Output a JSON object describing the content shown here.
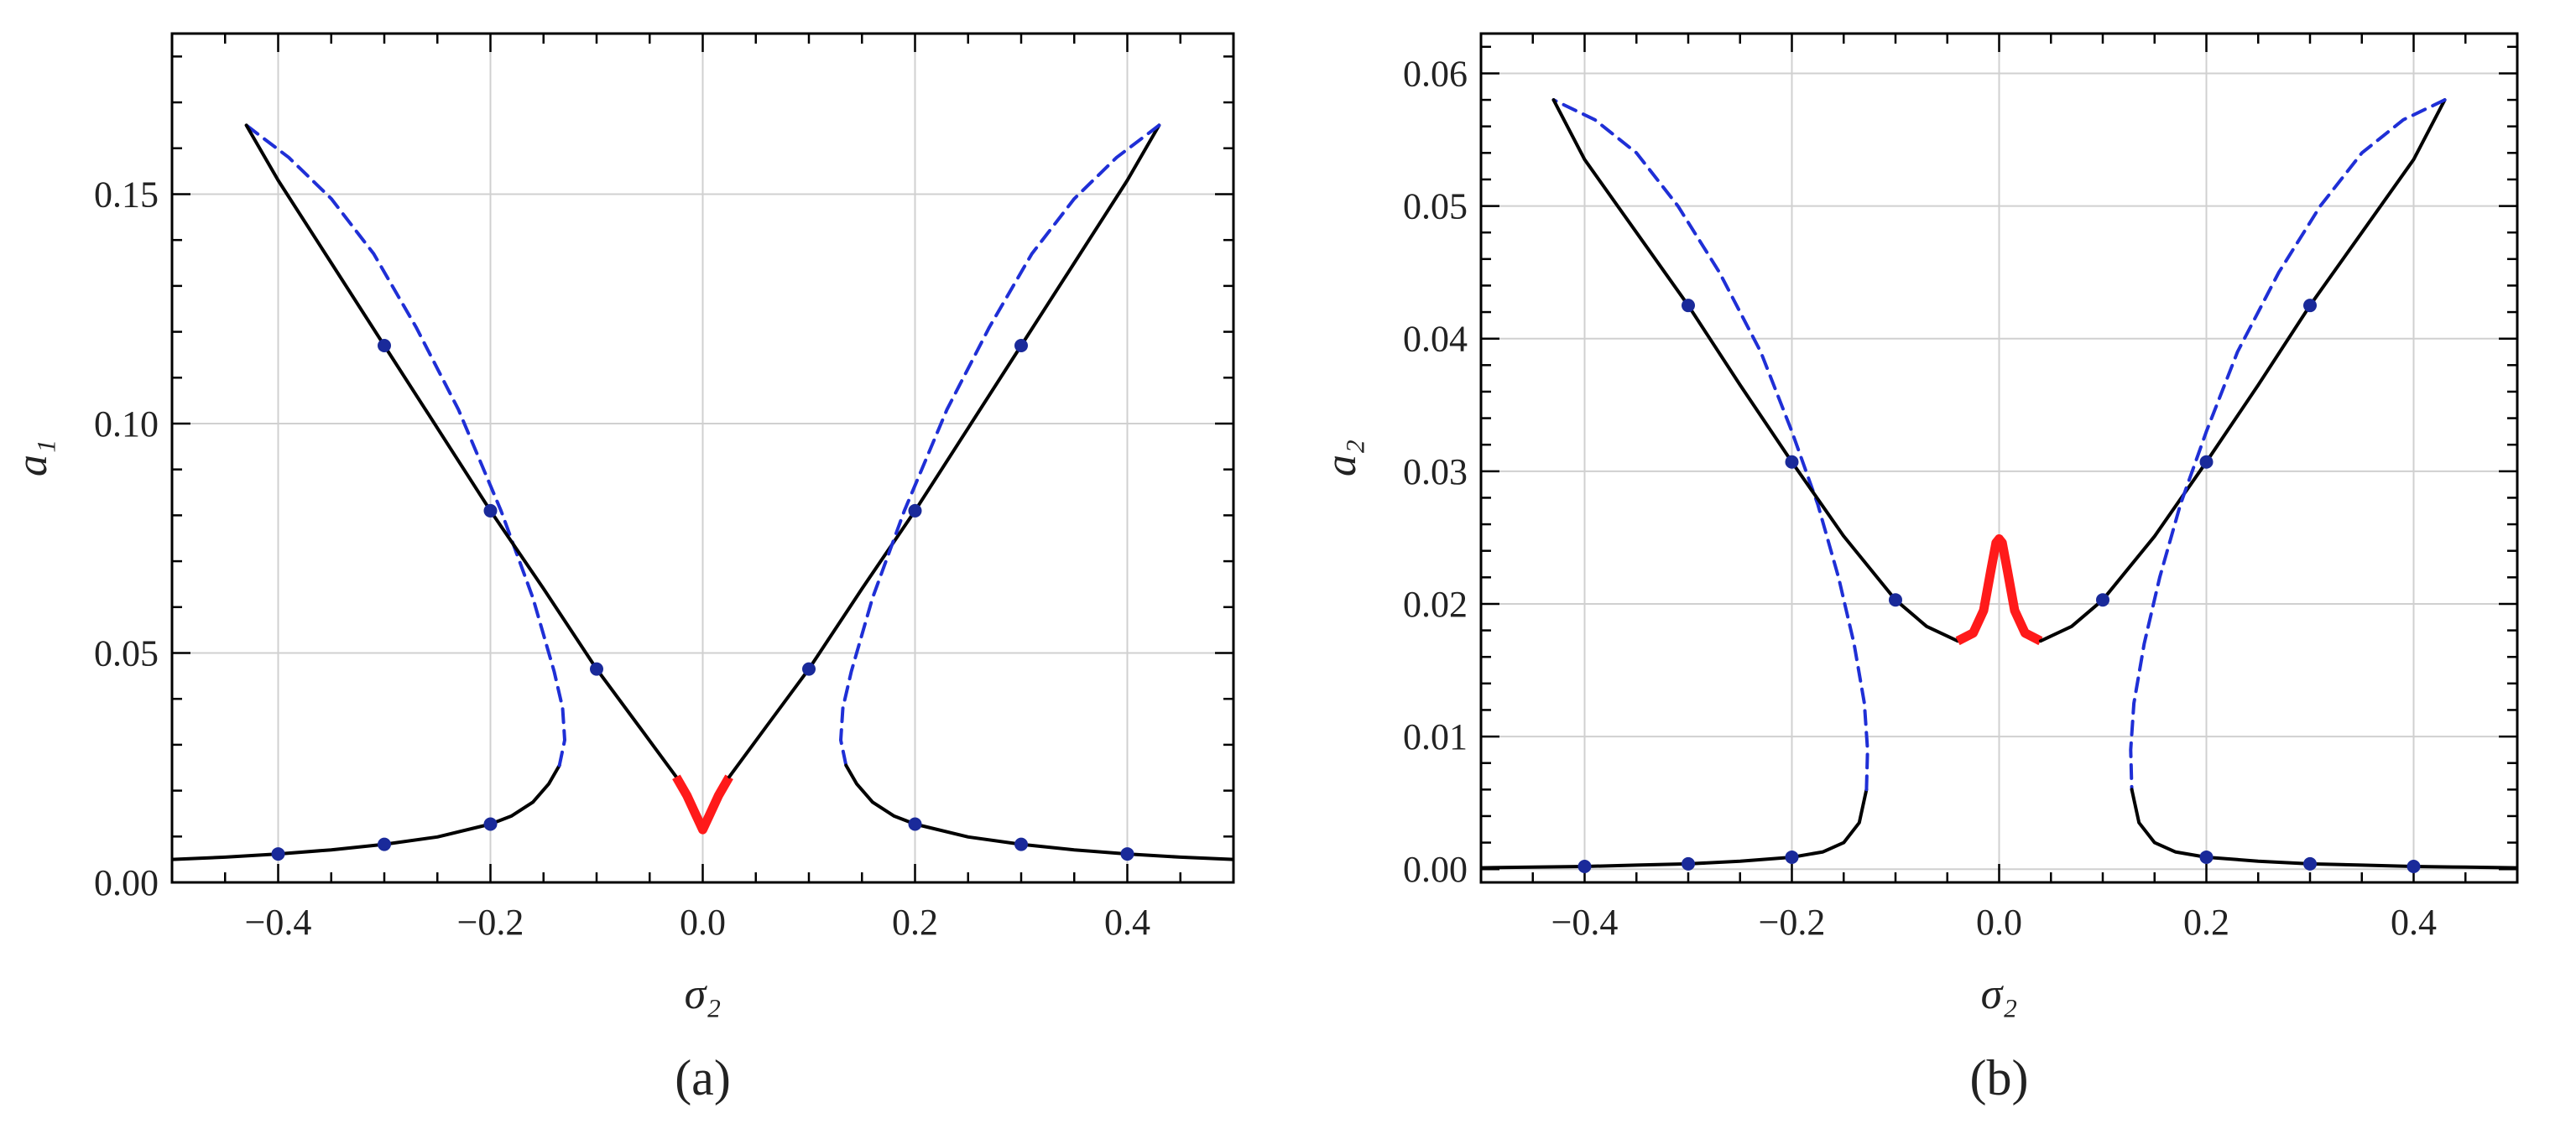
{
  "colors": {
    "stable": "#000000",
    "unstable": "#1f2fd6",
    "special": "#ff1a1a",
    "markers": "#1a2a9a",
    "grid": "#d0d0d0",
    "frame": "#000000"
  },
  "chart_data": [
    {
      "type": "line",
      "panel_label": "(a)",
      "xlabel": "σ₂",
      "ylabel": "a₁",
      "xlim": [
        -0.5,
        0.5
      ],
      "ylim": [
        0.0,
        0.185
      ],
      "grid": true,
      "xticks": [
        -0.4,
        -0.2,
        0.0,
        0.2,
        0.4
      ],
      "xtick_labels": [
        "−0.4",
        "−0.2",
        "0.0",
        "0.2",
        "0.4"
      ],
      "yticks": [
        0.0,
        0.05,
        0.1,
        0.15
      ],
      "ytick_labels": [
        "0.00",
        "0.05",
        "0.10",
        "0.15"
      ],
      "series": [
        {
          "style": "stable",
          "points": [
            [
              -0.5,
              0.005
            ],
            [
              -0.45,
              0.0055
            ],
            [
              -0.4,
              0.0062
            ],
            [
              -0.35,
              0.0071
            ],
            [
              -0.3,
              0.0083
            ],
            [
              -0.25,
              0.0099
            ],
            [
              -0.2,
              0.0127
            ],
            [
              -0.18,
              0.0145
            ],
            [
              -0.16,
              0.0175
            ],
            [
              -0.145,
              0.0215
            ],
            [
              -0.135,
              0.0255
            ]
          ]
        },
        {
          "style": "unstable",
          "points": [
            [
              -0.135,
              0.0255
            ],
            [
              -0.13,
              0.031
            ],
            [
              -0.132,
              0.038
            ],
            [
              -0.14,
              0.046
            ],
            [
              -0.16,
              0.062
            ],
            [
              -0.19,
              0.081
            ],
            [
              -0.23,
              0.103
            ],
            [
              -0.27,
              0.121
            ],
            [
              -0.31,
              0.137
            ],
            [
              -0.35,
              0.149
            ],
            [
              -0.39,
              0.158
            ],
            [
              -0.43,
              0.165
            ]
          ]
        },
        {
          "style": "stable",
          "points": [
            [
              -0.43,
              0.165
            ],
            [
              -0.4,
              0.153
            ],
            [
              -0.35,
              0.135
            ],
            [
              -0.3,
              0.117
            ],
            [
              -0.25,
              0.099
            ],
            [
              -0.2,
              0.081
            ],
            [
              -0.15,
              0.064
            ],
            [
              -0.1,
              0.0465
            ],
            [
              -0.06,
              0.034
            ],
            [
              -0.025,
              0.023
            ]
          ]
        },
        {
          "style": "special",
          "points": [
            [
              -0.025,
              0.023
            ],
            [
              -0.015,
              0.019
            ],
            [
              -0.007,
              0.015
            ],
            [
              0.0,
              0.0115
            ],
            [
              0.007,
              0.015
            ],
            [
              0.015,
              0.019
            ],
            [
              0.025,
              0.023
            ]
          ]
        },
        {
          "style": "stable",
          "points": [
            [
              0.025,
              0.023
            ],
            [
              0.06,
              0.034
            ],
            [
              0.1,
              0.0465
            ],
            [
              0.15,
              0.064
            ],
            [
              0.2,
              0.081
            ],
            [
              0.25,
              0.099
            ],
            [
              0.3,
              0.117
            ],
            [
              0.35,
              0.135
            ],
            [
              0.4,
              0.153
            ],
            [
              0.43,
              0.165
            ]
          ]
        },
        {
          "style": "unstable",
          "points": [
            [
              0.43,
              0.165
            ],
            [
              0.39,
              0.158
            ],
            [
              0.35,
              0.149
            ],
            [
              0.31,
              0.137
            ],
            [
              0.27,
              0.121
            ],
            [
              0.23,
              0.103
            ],
            [
              0.19,
              0.081
            ],
            [
              0.16,
              0.062
            ],
            [
              0.14,
              0.046
            ],
            [
              0.132,
              0.038
            ],
            [
              0.13,
              0.031
            ],
            [
              0.135,
              0.0255
            ]
          ]
        },
        {
          "style": "stable",
          "points": [
            [
              0.135,
              0.0255
            ],
            [
              0.145,
              0.0215
            ],
            [
              0.16,
              0.0175
            ],
            [
              0.18,
              0.0145
            ],
            [
              0.2,
              0.0127
            ],
            [
              0.25,
              0.0099
            ],
            [
              0.3,
              0.0083
            ],
            [
              0.35,
              0.0071
            ],
            [
              0.4,
              0.0062
            ],
            [
              0.45,
              0.0055
            ],
            [
              0.5,
              0.005
            ]
          ]
        }
      ],
      "markers": [
        [
          -0.4,
          0.0062
        ],
        [
          -0.3,
          0.0083
        ],
        [
          -0.2,
          0.0127
        ],
        [
          -0.3,
          0.117
        ],
        [
          -0.2,
          0.081
        ],
        [
          -0.1,
          0.0465
        ],
        [
          0.1,
          0.0465
        ],
        [
          0.2,
          0.081
        ],
        [
          0.3,
          0.117
        ],
        [
          0.2,
          0.0127
        ],
        [
          0.3,
          0.0083
        ],
        [
          0.4,
          0.0062
        ]
      ]
    },
    {
      "type": "line",
      "panel_label": "(b)",
      "xlabel": "σ₂",
      "ylabel": "a₂",
      "xlim": [
        -0.5,
        0.5
      ],
      "ylim": [
        -0.001,
        0.063
      ],
      "grid": true,
      "xticks": [
        -0.4,
        -0.2,
        0.0,
        0.2,
        0.4
      ],
      "xtick_labels": [
        "−0.4",
        "−0.2",
        "0.0",
        "0.2",
        "0.4"
      ],
      "yticks": [
        0.0,
        0.01,
        0.02,
        0.03,
        0.04,
        0.05,
        0.06
      ],
      "ytick_labels": [
        "0.00",
        "0.01",
        "0.02",
        "0.03",
        "0.04",
        "0.05",
        "0.06"
      ],
      "series": [
        {
          "style": "stable",
          "points": [
            [
              -0.5,
              0.0001
            ],
            [
              -0.45,
              0.00015
            ],
            [
              -0.4,
              0.0002
            ],
            [
              -0.35,
              0.0003
            ],
            [
              -0.3,
              0.0004
            ],
            [
              -0.25,
              0.0006
            ],
            [
              -0.2,
              0.0009
            ],
            [
              -0.17,
              0.0013
            ],
            [
              -0.15,
              0.002
            ],
            [
              -0.135,
              0.0035
            ],
            [
              -0.128,
              0.006
            ]
          ]
        },
        {
          "style": "unstable",
          "points": [
            [
              -0.128,
              0.006
            ],
            [
              -0.127,
              0.009
            ],
            [
              -0.13,
              0.0125
            ],
            [
              -0.14,
              0.017
            ],
            [
              -0.155,
              0.022
            ],
            [
              -0.175,
              0.0275
            ],
            [
              -0.2,
              0.033
            ],
            [
              -0.23,
              0.039
            ],
            [
              -0.27,
              0.045
            ],
            [
              -0.31,
              0.05
            ],
            [
              -0.35,
              0.054
            ],
            [
              -0.39,
              0.0565
            ],
            [
              -0.43,
              0.058
            ]
          ]
        },
        {
          "style": "stable",
          "points": [
            [
              -0.43,
              0.058
            ],
            [
              -0.4,
              0.0535
            ],
            [
              -0.35,
              0.048
            ],
            [
              -0.3,
              0.0425
            ],
            [
              -0.25,
              0.0365
            ],
            [
              -0.2,
              0.0307
            ],
            [
              -0.15,
              0.0251
            ],
            [
              -0.1,
              0.0203
            ],
            [
              -0.07,
              0.0183
            ],
            [
              -0.04,
              0.0172
            ]
          ]
        },
        {
          "style": "special",
          "points": [
            [
              -0.04,
              0.0172
            ],
            [
              -0.025,
              0.0178
            ],
            [
              -0.015,
              0.0195
            ],
            [
              -0.008,
              0.0225
            ],
            [
              -0.003,
              0.0246
            ],
            [
              0.0,
              0.0249
            ],
            [
              0.003,
              0.0246
            ],
            [
              0.008,
              0.0225
            ],
            [
              0.015,
              0.0195
            ],
            [
              0.025,
              0.0178
            ],
            [
              0.04,
              0.0172
            ]
          ]
        },
        {
          "style": "stable",
          "points": [
            [
              0.04,
              0.0172
            ],
            [
              0.07,
              0.0183
            ],
            [
              0.1,
              0.0203
            ],
            [
              0.15,
              0.0251
            ],
            [
              0.2,
              0.0307
            ],
            [
              0.25,
              0.0365
            ],
            [
              0.3,
              0.0425
            ],
            [
              0.35,
              0.048
            ],
            [
              0.4,
              0.0535
            ],
            [
              0.43,
              0.058
            ]
          ]
        },
        {
          "style": "unstable",
          "points": [
            [
              0.43,
              0.058
            ],
            [
              0.39,
              0.0565
            ],
            [
              0.35,
              0.054
            ],
            [
              0.31,
              0.05
            ],
            [
              0.27,
              0.045
            ],
            [
              0.23,
              0.039
            ],
            [
              0.2,
              0.033
            ],
            [
              0.175,
              0.0275
            ],
            [
              0.155,
              0.022
            ],
            [
              0.14,
              0.017
            ],
            [
              0.13,
              0.0125
            ],
            [
              0.127,
              0.009
            ],
            [
              0.128,
              0.006
            ]
          ]
        },
        {
          "style": "stable",
          "points": [
            [
              0.128,
              0.006
            ],
            [
              0.135,
              0.0035
            ],
            [
              0.15,
              0.002
            ],
            [
              0.17,
              0.0013
            ],
            [
              0.2,
              0.0009
            ],
            [
              0.25,
              0.0006
            ],
            [
              0.3,
              0.0004
            ],
            [
              0.35,
              0.0003
            ],
            [
              0.4,
              0.0002
            ],
            [
              0.45,
              0.00015
            ],
            [
              0.5,
              0.0001
            ]
          ]
        }
      ],
      "markers": [
        [
          -0.4,
          0.0002
        ],
        [
          -0.3,
          0.0004
        ],
        [
          -0.2,
          0.0009
        ],
        [
          -0.3,
          0.0425
        ],
        [
          -0.2,
          0.0307
        ],
        [
          -0.1,
          0.0203
        ],
        [
          0.1,
          0.0203
        ],
        [
          0.2,
          0.0307
        ],
        [
          0.3,
          0.0425
        ],
        [
          0.2,
          0.0009
        ],
        [
          0.3,
          0.0004
        ],
        [
          0.4,
          0.0002
        ]
      ]
    }
  ]
}
